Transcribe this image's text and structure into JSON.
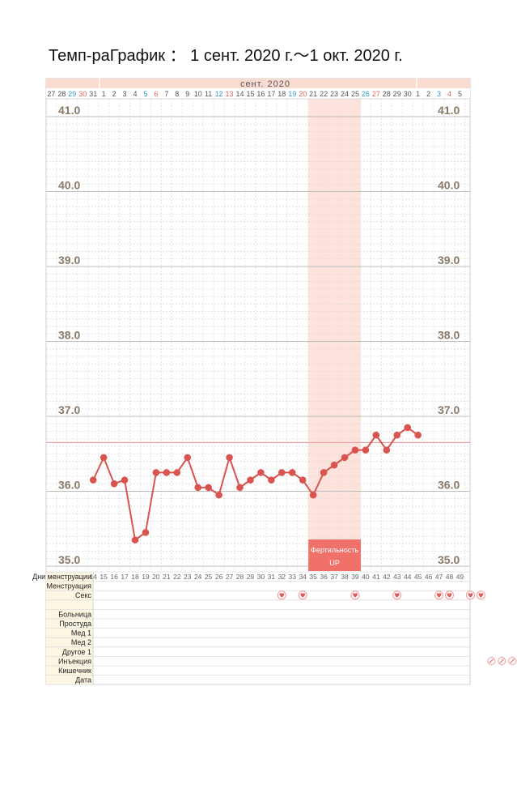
{
  "title": "Темп-раГрафик ： 1 сент. 2020 г.～1 окт. 2020 г.",
  "colors": {
    "line": "#d9534f",
    "header_bg": "#fadbd2",
    "fertile_bg": "#fde3dc",
    "fertile_label_bg": "#f0706a",
    "label_col_bg": "#fdf6e3",
    "baseline": "#e8a0a0",
    "weekend_blue": "#3399cc",
    "weekend_red": "#e06666",
    "weekday": "#555555"
  },
  "chart_data": {
    "type": "line",
    "title": "",
    "month_label": "сент. 2020",
    "xlabel": "",
    "ylabel": "",
    "ylim": [
      35.0,
      41.0
    ],
    "ytick_labels": [
      "35.0",
      "36.0",
      "37.0",
      "38.0",
      "39.0",
      "40.0",
      "41.0"
    ],
    "grid": true,
    "date_row": [
      "27",
      "28",
      "29",
      "30",
      "31",
      "1",
      "2",
      "3",
      "4",
      "5",
      "6",
      "7",
      "8",
      "9",
      "10",
      "11",
      "12",
      "13",
      "14",
      "15",
      "16",
      "17",
      "18",
      "19",
      "20",
      "21",
      "22",
      "23",
      "24",
      "25",
      "26",
      "27",
      "28",
      "29",
      "30",
      "1",
      "2",
      "3",
      "4",
      "5"
    ],
    "date_row_colors": [
      "weekday",
      "weekday",
      "blue",
      "red",
      "weekday",
      "weekday",
      "weekday",
      "weekday",
      "weekday",
      "blue",
      "red",
      "weekday",
      "weekday",
      "weekday",
      "weekday",
      "weekday",
      "blue",
      "red",
      "weekday",
      "weekday",
      "weekday",
      "weekday",
      "weekday",
      "blue",
      "red",
      "weekday",
      "weekday",
      "weekday",
      "weekday",
      "weekday",
      "blue",
      "red",
      "weekday",
      "weekday",
      "weekday",
      "weekday",
      "weekday",
      "blue",
      "red",
      "weekday"
    ],
    "cycle_day_label": "Дни менструации",
    "cycle_days": [
      "14",
      "15",
      "16",
      "17",
      "18",
      "19",
      "20",
      "21",
      "22",
      "23",
      "24",
      "25",
      "26",
      "27",
      "28",
      "29",
      "30",
      "31",
      "32",
      "33",
      "34",
      "35",
      "36",
      "37",
      "38",
      "39",
      "40",
      "41",
      "42",
      "43",
      "44",
      "45",
      "46",
      "47",
      "48",
      "49"
    ],
    "series": [
      {
        "x": [
          "1",
          "2",
          "3",
          "4",
          "5",
          "6",
          "7",
          "8",
          "9",
          "10",
          "11",
          "12",
          "13",
          "14",
          "15",
          "16",
          "17",
          "18",
          "19",
          "20",
          "21",
          "22",
          "23",
          "24",
          "25",
          "26",
          "27",
          "28",
          "29",
          "30",
          "1"
        ],
        "values": [
          36.45,
          36.1,
          36.15,
          35.35,
          35.45,
          36.25,
          36.25,
          36.25,
          36.45,
          36.05,
          36.05,
          35.95,
          36.45,
          36.05,
          36.15,
          36.25,
          36.15,
          36.25,
          36.25,
          36.15,
          35.95,
          36.25,
          36.35,
          36.45,
          36.55,
          36.55,
          36.75,
          36.55,
          36.75,
          36.85,
          36.75
        ]
      }
    ],
    "first_point": {
      "date": "31",
      "value": 36.15
    },
    "baseline": 36.65,
    "fertile_window": {
      "start": "21",
      "end": "25",
      "label_line1": "Фертильность",
      "label_line2": "UP"
    },
    "rows": [
      "Менструация",
      "Секс",
      "",
      "Больница",
      "Простуда",
      "Мед 1",
      "Мед 2",
      "Другое 1",
      "Инъекция",
      "Кишечник",
      "Дата"
    ],
    "sex_days": [
      "18",
      "20",
      "25",
      "29",
      "33",
      "34",
      "36",
      "37"
    ],
    "injection_days": [
      "38",
      "39",
      "40",
      "41",
      "42",
      "43",
      "44",
      "45"
    ]
  }
}
